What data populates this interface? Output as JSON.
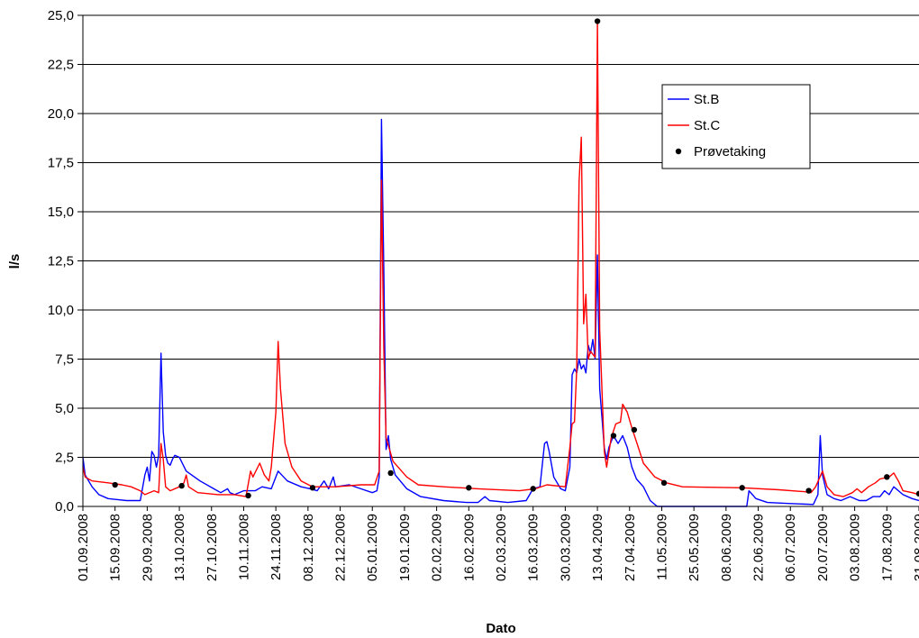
{
  "chart_data": {
    "type": "line",
    "xlabel": "Dato",
    "ylabel": "l/s",
    "ylim": [
      0,
      25
    ],
    "y_ticks": [
      "0,0",
      "2,5",
      "5,0",
      "7,5",
      "10,0",
      "12,5",
      "15,0",
      "17,5",
      "20,0",
      "22,5",
      "25,0"
    ],
    "x_ticks": [
      "01.09.2008",
      "15.09.2008",
      "29.09.2008",
      "13.10.2008",
      "27.10.2008",
      "10.11.2008",
      "24.11.2008",
      "08.12.2008",
      "22.12.2008",
      "05.01.2009",
      "19.01.2009",
      "02.02.2009",
      "16.02.2009",
      "02.03.2009",
      "16.03.2009",
      "30.03.2009",
      "13.04.2009",
      "27.04.2009",
      "11.05.2009",
      "25.05.2009",
      "08.06.2009",
      "22.06.2009",
      "06.07.2009",
      "20.07.2009",
      "03.08.2009",
      "17.08.2009",
      "31.08.2009"
    ],
    "xlim": [
      "2008-09-01",
      "2009-08-31"
    ],
    "grid": "horizontal",
    "legend_position": "right, inside plot area",
    "series": [
      {
        "name": "St.B",
        "color": "#0000ff",
        "points": [
          [
            "2008-09-01",
            2.5
          ],
          [
            "2008-09-02",
            1.6
          ],
          [
            "2008-09-05",
            1.0
          ],
          [
            "2008-09-08",
            0.6
          ],
          [
            "2008-09-12",
            0.4
          ],
          [
            "2008-09-20",
            0.3
          ],
          [
            "2008-09-26",
            0.3
          ],
          [
            "2008-09-28",
            1.6
          ],
          [
            "2008-09-29",
            2.0
          ],
          [
            "2008-09-30",
            1.3
          ],
          [
            "2008-10-01",
            2.8
          ],
          [
            "2008-10-02",
            2.6
          ],
          [
            "2008-10-03",
            2.0
          ],
          [
            "2008-10-04",
            2.6
          ],
          [
            "2008-10-05",
            7.8
          ],
          [
            "2008-10-06",
            3.8
          ],
          [
            "2008-10-07",
            2.6
          ],
          [
            "2008-10-08",
            2.2
          ],
          [
            "2008-10-09",
            2.1
          ],
          [
            "2008-10-10",
            2.4
          ],
          [
            "2008-10-11",
            2.6
          ],
          [
            "2008-10-13",
            2.5
          ],
          [
            "2008-10-16",
            1.8
          ],
          [
            "2008-10-22",
            1.3
          ],
          [
            "2008-10-28",
            0.9
          ],
          [
            "2008-10-31",
            0.7
          ],
          [
            "2008-11-03",
            0.9
          ],
          [
            "2008-11-04",
            0.7
          ],
          [
            "2008-11-06",
            0.6
          ],
          [
            "2008-11-10",
            0.8
          ],
          [
            "2008-11-15",
            0.8
          ],
          [
            "2008-11-18",
            1.0
          ],
          [
            "2008-11-22",
            0.9
          ],
          [
            "2008-11-25",
            1.8
          ],
          [
            "2008-11-29",
            1.3
          ],
          [
            "2008-12-05",
            1.0
          ],
          [
            "2008-12-09",
            0.9
          ],
          [
            "2008-12-12",
            0.8
          ],
          [
            "2008-12-15",
            1.3
          ],
          [
            "2008-12-17",
            0.9
          ],
          [
            "2008-12-19",
            1.5
          ],
          [
            "2008-12-20",
            1.0
          ],
          [
            "2008-12-26",
            1.1
          ],
          [
            "2008-12-31",
            0.9
          ],
          [
            "2009-01-05",
            0.7
          ],
          [
            "2009-01-07",
            0.8
          ],
          [
            "2009-01-08",
            1.5
          ],
          [
            "2009-01-09",
            19.7
          ],
          [
            "2009-01-10",
            12.0
          ],
          [
            "2009-01-11",
            2.9
          ],
          [
            "2009-01-12",
            3.6
          ],
          [
            "2009-01-13",
            2.4
          ],
          [
            "2009-01-15",
            1.6
          ],
          [
            "2009-01-20",
            0.9
          ],
          [
            "2009-01-26",
            0.5
          ],
          [
            "2009-02-05",
            0.3
          ],
          [
            "2009-02-15",
            0.2
          ],
          [
            "2009-02-20",
            0.2
          ],
          [
            "2009-02-23",
            0.5
          ],
          [
            "2009-02-25",
            0.3
          ],
          [
            "2009-03-05",
            0.2
          ],
          [
            "2009-03-13",
            0.3
          ],
          [
            "2009-03-16",
            0.9
          ],
          [
            "2009-03-19",
            1.0
          ],
          [
            "2009-03-21",
            3.2
          ],
          [
            "2009-03-22",
            3.3
          ],
          [
            "2009-03-23",
            2.8
          ],
          [
            "2009-03-25",
            1.5
          ],
          [
            "2009-03-28",
            0.9
          ],
          [
            "2009-03-30",
            0.8
          ],
          [
            "2009-04-01",
            2.0
          ],
          [
            "2009-04-02",
            6.7
          ],
          [
            "2009-04-03",
            7.0
          ],
          [
            "2009-04-04",
            6.8
          ],
          [
            "2009-04-05",
            7.5
          ],
          [
            "2009-04-06",
            7.0
          ],
          [
            "2009-04-07",
            7.2
          ],
          [
            "2009-04-08",
            6.8
          ],
          [
            "2009-04-09",
            8.2
          ],
          [
            "2009-04-10",
            7.8
          ],
          [
            "2009-04-11",
            8.5
          ],
          [
            "2009-04-12",
            7.5
          ],
          [
            "2009-04-13",
            12.8
          ],
          [
            "2009-04-14",
            6.0
          ],
          [
            "2009-04-16",
            3.0
          ],
          [
            "2009-04-17",
            2.4
          ],
          [
            "2009-04-18",
            3.0
          ],
          [
            "2009-04-20",
            3.6
          ],
          [
            "2009-04-22",
            3.2
          ],
          [
            "2009-04-24",
            3.6
          ],
          [
            "2009-04-26",
            3.0
          ],
          [
            "2009-04-28",
            2.0
          ],
          [
            "2009-04-30",
            1.4
          ],
          [
            "2009-05-03",
            1.0
          ],
          [
            "2009-05-06",
            0.3
          ],
          [
            "2009-05-09",
            0.0
          ],
          [
            "2009-06-17",
            0.0
          ],
          [
            "2009-06-18",
            0.8
          ],
          [
            "2009-06-21",
            0.4
          ],
          [
            "2009-06-26",
            0.2
          ],
          [
            "2009-07-05",
            0.15
          ],
          [
            "2009-07-16",
            0.1
          ],
          [
            "2009-07-18",
            0.6
          ],
          [
            "2009-07-19",
            3.6
          ],
          [
            "2009-07-20",
            1.6
          ],
          [
            "2009-07-22",
            0.6
          ],
          [
            "2009-07-25",
            0.4
          ],
          [
            "2009-07-28",
            0.3
          ],
          [
            "2009-08-01",
            0.5
          ],
          [
            "2009-08-05",
            0.3
          ],
          [
            "2009-08-08",
            0.3
          ],
          [
            "2009-08-11",
            0.5
          ],
          [
            "2009-08-14",
            0.5
          ],
          [
            "2009-08-16",
            0.8
          ],
          [
            "2009-08-18",
            0.6
          ],
          [
            "2009-08-20",
            1.0
          ],
          [
            "2009-08-24",
            0.6
          ],
          [
            "2009-08-28",
            0.4
          ],
          [
            "2009-08-31",
            0.3
          ]
        ]
      },
      {
        "name": "St.C",
        "color": "#ff0000",
        "points": [
          [
            "2008-09-01",
            2.0
          ],
          [
            "2008-09-02",
            1.5
          ],
          [
            "2008-09-05",
            1.3
          ],
          [
            "2008-09-12",
            1.2
          ],
          [
            "2008-09-18",
            1.1
          ],
          [
            "2008-09-22",
            1.0
          ],
          [
            "2008-09-26",
            0.8
          ],
          [
            "2008-09-28",
            0.6
          ],
          [
            "2008-10-02",
            0.8
          ],
          [
            "2008-10-04",
            0.7
          ],
          [
            "2008-10-05",
            3.2
          ],
          [
            "2008-10-06",
            2.4
          ],
          [
            "2008-10-07",
            1.0
          ],
          [
            "2008-10-09",
            0.8
          ],
          [
            "2008-10-13",
            1.0
          ],
          [
            "2008-10-15",
            1.2
          ],
          [
            "2008-10-16",
            1.6
          ],
          [
            "2008-10-17",
            1.0
          ],
          [
            "2008-10-21",
            0.7
          ],
          [
            "2008-10-30",
            0.6
          ],
          [
            "2008-11-06",
            0.6
          ],
          [
            "2008-11-11",
            0.5
          ],
          [
            "2008-11-13",
            1.8
          ],
          [
            "2008-11-14",
            1.5
          ],
          [
            "2008-11-17",
            2.2
          ],
          [
            "2008-11-19",
            1.6
          ],
          [
            "2008-11-21",
            1.3
          ],
          [
            "2008-11-22",
            2.0
          ],
          [
            "2008-11-24",
            4.8
          ],
          [
            "2008-11-25",
            8.4
          ],
          [
            "2008-11-26",
            6.0
          ],
          [
            "2008-11-28",
            3.2
          ],
          [
            "2008-12-01",
            2.0
          ],
          [
            "2008-12-05",
            1.3
          ],
          [
            "2008-12-10",
            1.0
          ],
          [
            "2008-12-20",
            1.0
          ],
          [
            "2008-12-31",
            1.1
          ],
          [
            "2009-01-06",
            1.1
          ],
          [
            "2009-01-08",
            1.8
          ],
          [
            "2009-01-09",
            16.6
          ],
          [
            "2009-01-10",
            8.0
          ],
          [
            "2009-01-11",
            3.5
          ],
          [
            "2009-01-14",
            2.3
          ],
          [
            "2009-01-20",
            1.5
          ],
          [
            "2009-01-25",
            1.1
          ],
          [
            "2009-02-05",
            1.0
          ],
          [
            "2009-02-20",
            0.9
          ],
          [
            "2009-03-10",
            0.8
          ],
          [
            "2009-03-17",
            0.9
          ],
          [
            "2009-03-22",
            1.1
          ],
          [
            "2009-03-30",
            1.0
          ],
          [
            "2009-04-01",
            3.0
          ],
          [
            "2009-04-02",
            4.2
          ],
          [
            "2009-04-03",
            4.3
          ],
          [
            "2009-04-04",
            7.0
          ],
          [
            "2009-04-05",
            16.5
          ],
          [
            "2009-04-06",
            18.8
          ],
          [
            "2009-04-07",
            9.3
          ],
          [
            "2009-04-08",
            10.8
          ],
          [
            "2009-04-09",
            7.5
          ],
          [
            "2009-04-10",
            7.9
          ],
          [
            "2009-04-12",
            7.6
          ],
          [
            "2009-04-13",
            24.7
          ],
          [
            "2009-04-14",
            9.0
          ],
          [
            "2009-04-16",
            2.8
          ],
          [
            "2009-04-17",
            2.0
          ],
          [
            "2009-04-19",
            3.5
          ],
          [
            "2009-04-21",
            4.2
          ],
          [
            "2009-04-23",
            4.3
          ],
          [
            "2009-04-24",
            5.2
          ],
          [
            "2009-04-26",
            4.8
          ],
          [
            "2009-04-28",
            4.0
          ],
          [
            "2009-04-30",
            3.3
          ],
          [
            "2009-05-03",
            2.2
          ],
          [
            "2009-05-08",
            1.5
          ],
          [
            "2009-05-13",
            1.2
          ],
          [
            "2009-05-20",
            1.0
          ],
          [
            "2009-06-15",
            0.95
          ],
          [
            "2009-07-01",
            0.85
          ],
          [
            "2009-07-12",
            0.75
          ],
          [
            "2009-07-15",
            0.7
          ],
          [
            "2009-07-17",
            1.0
          ],
          [
            "2009-07-20",
            1.8
          ],
          [
            "2009-07-22",
            1.0
          ],
          [
            "2009-07-25",
            0.6
          ],
          [
            "2009-07-29",
            0.5
          ],
          [
            "2009-08-02",
            0.7
          ],
          [
            "2009-08-04",
            0.9
          ],
          [
            "2009-08-06",
            0.7
          ],
          [
            "2009-08-09",
            1.0
          ],
          [
            "2009-08-12",
            1.2
          ],
          [
            "2009-08-14",
            1.4
          ],
          [
            "2009-08-18",
            1.5
          ],
          [
            "2009-08-20",
            1.7
          ],
          [
            "2009-08-22",
            1.3
          ],
          [
            "2009-08-24",
            0.8
          ],
          [
            "2009-08-28",
            0.7
          ],
          [
            "2009-08-31",
            0.6
          ]
        ]
      },
      {
        "name": "Prøvetaking",
        "color": "#000000",
        "type": "scatter",
        "points": [
          [
            "2008-09-15",
            1.1
          ],
          [
            "2008-10-14",
            1.05
          ],
          [
            "2008-11-12",
            0.55
          ],
          [
            "2008-12-10",
            0.95
          ],
          [
            "2009-01-13",
            1.7
          ],
          [
            "2009-02-16",
            0.95
          ],
          [
            "2009-03-16",
            0.9
          ],
          [
            "2009-04-13",
            24.7
          ],
          [
            "2009-04-20",
            3.6
          ],
          [
            "2009-04-29",
            3.9
          ],
          [
            "2009-05-12",
            1.2
          ],
          [
            "2009-06-15",
            0.95
          ],
          [
            "2009-07-14",
            0.8
          ],
          [
            "2009-08-17",
            1.5
          ],
          [
            "2009-08-31",
            0.65
          ]
        ]
      }
    ]
  }
}
